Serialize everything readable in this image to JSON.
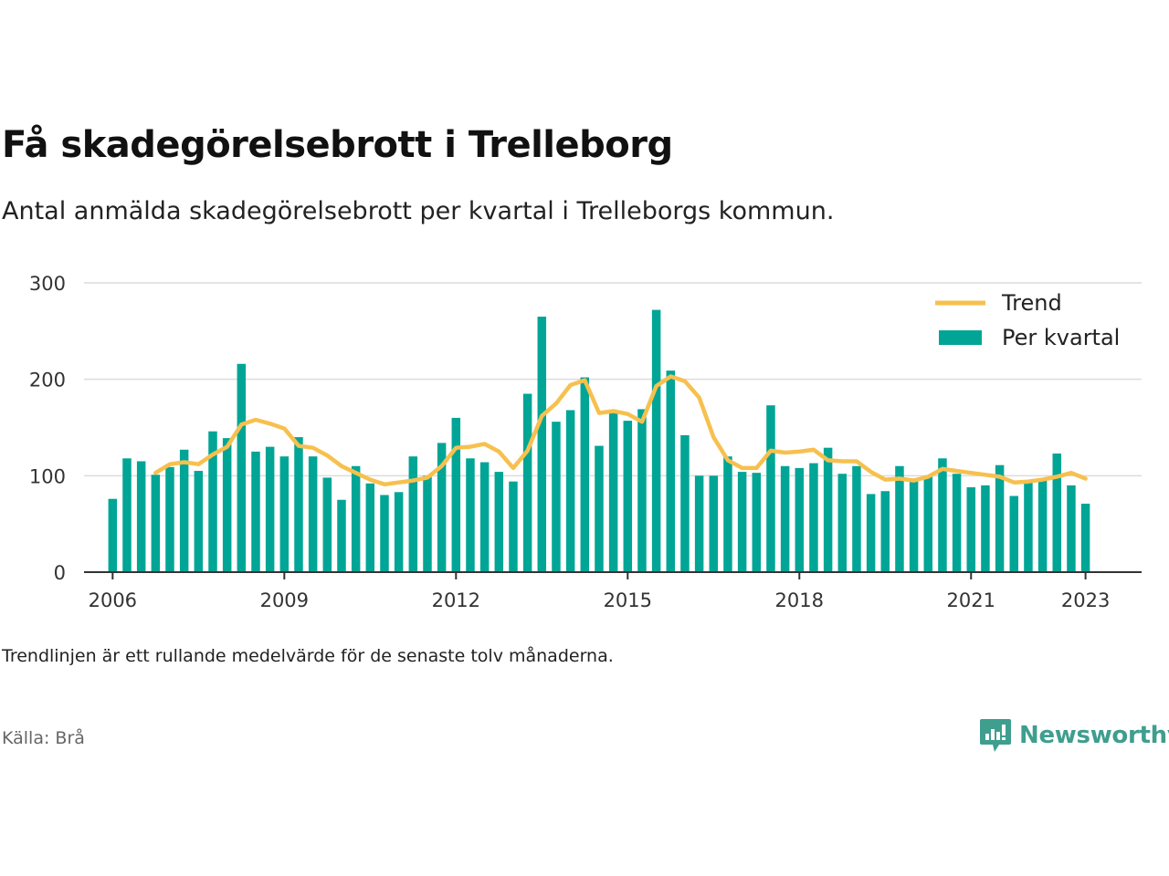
{
  "title": "Få skadegörelsebrott i Trelleborg",
  "subtitle": "Antal anmälda skadegörelsebrott per kvartal i Trelleborgs kommun.",
  "note": "Trendlinjen är ett rullande medelvärde för de senaste tolv månaderna.",
  "source": "Källa: Brå",
  "brand": {
    "name": "Newsworthy",
    "icon": "newsworthy-logo-icon"
  },
  "chart_data": {
    "type": "bar",
    "title": "Få skadegörelsebrott i Trelleborg",
    "xlabel": "",
    "ylabel": "",
    "ylim": [
      0,
      300
    ],
    "xlim": [
      2005.5,
      2023.98
    ],
    "grid": true,
    "legend_position": "top-right",
    "yticks": [
      "0",
      "100",
      "200",
      "300"
    ],
    "xticks": [
      {
        "label": "2006",
        "value": 2006
      },
      {
        "label": "2009",
        "value": 2009
      },
      {
        "label": "2012",
        "value": 2012
      },
      {
        "label": "2015",
        "value": 2015
      },
      {
        "label": "2018",
        "value": 2018
      },
      {
        "label": "2021",
        "value": 2021
      },
      {
        "label": "2023",
        "value": 2023
      }
    ],
    "x_start": 2006,
    "x_step": 0.25,
    "colors": {
      "bars": "#00a596",
      "trend": "#f7c04e",
      "grid": "#dcdcdc",
      "axis": "#333333"
    },
    "series": [
      {
        "name": "Per kvartal",
        "type": "bar",
        "values": [
          76,
          118,
          115,
          101,
          109,
          127,
          105,
          146,
          139,
          216,
          125,
          130,
          120,
          140,
          120,
          98,
          75,
          110,
          92,
          80,
          83,
          120,
          100,
          134,
          160,
          118,
          114,
          104,
          94,
          185,
          265,
          156,
          168,
          202,
          131,
          165,
          157,
          169,
          272,
          209,
          142,
          100,
          100,
          120,
          104,
          103,
          173,
          110,
          108,
          113,
          129,
          102,
          110,
          81,
          84,
          110,
          95,
          100,
          118,
          102,
          88,
          90,
          111,
          79,
          93,
          96,
          123,
          90,
          71
        ]
      },
      {
        "name": "Trend",
        "type": "line",
        "x": [
          2006.75,
          2007.0,
          2007.25,
          2007.5,
          2007.75,
          2008.0,
          2008.25,
          2008.5,
          2008.75,
          2009.0,
          2009.25,
          2009.5,
          2009.75,
          2010.0,
          2010.25,
          2010.5,
          2010.75,
          2011.0,
          2011.25,
          2011.5,
          2011.75,
          2012.0,
          2012.25,
          2012.5,
          2012.75,
          2013.0,
          2013.25,
          2013.5,
          2013.75,
          2014.0,
          2014.25,
          2014.5,
          2014.75,
          2015.0,
          2015.25,
          2015.5,
          2015.75,
          2016.0,
          2016.25,
          2016.5,
          2016.75,
          2017.0,
          2017.25,
          2017.5,
          2017.75,
          2018.0,
          2018.25,
          2018.5,
          2018.75,
          2019.0,
          2019.25,
          2019.5,
          2019.75,
          2020.0,
          2020.25,
          2020.5,
          2020.75,
          2021.0,
          2021.25,
          2021.5,
          2021.75,
          2022.0,
          2022.25,
          2022.5,
          2022.75,
          2023.0
        ],
        "values": [
          103,
          112,
          114,
          112,
          122,
          130,
          153,
          158,
          154,
          149,
          131,
          129,
          121,
          110,
          103,
          96,
          91,
          93,
          95,
          98,
          110,
          129,
          130,
          133,
          125,
          108,
          126,
          162,
          175,
          194,
          199,
          165,
          167,
          164,
          156,
          193,
          203,
          198,
          181,
          140,
          116,
          108,
          108,
          126,
          124,
          125,
          127,
          116,
          115,
          115,
          104,
          96,
          97,
          95,
          99,
          107,
          105,
          103,
          101,
          99,
          93,
          94,
          96,
          99,
          103,
          97
        ]
      }
    ]
  }
}
